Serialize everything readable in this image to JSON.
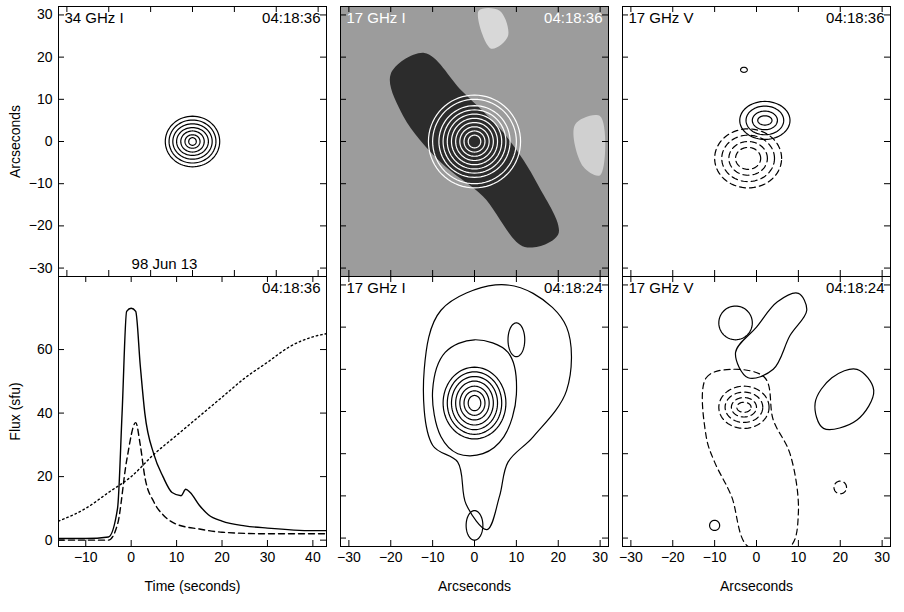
{
  "chart_data": [
    {
      "type": "contour",
      "title": "34 GHz I",
      "timestamp": "04:18:36",
      "annotations": [
        "98 Jun 13"
      ],
      "ylabel": "Arcseconds",
      "xlim": [
        -32,
        32
      ],
      "ylim": [
        -32,
        32
      ],
      "xticks": [
        -30,
        -20,
        -10,
        0,
        10,
        20,
        30
      ],
      "yticks": [
        -30,
        -20,
        -10,
        0,
        10,
        20,
        30
      ],
      "tick_labels": "y",
      "series": [
        {
          "color": "#000000",
          "line_style": "solid",
          "contours": [
            {
              "x": 0,
              "y": 0,
              "rx": 6.5,
              "ry": 6
            },
            {
              "x": 0,
              "y": 0,
              "rx": 5.6,
              "ry": 5.1
            },
            {
              "x": 0,
              "y": 0,
              "rx": 4.7,
              "ry": 4.2
            },
            {
              "x": 0,
              "y": 0,
              "rx": 3.8,
              "ry": 3.3
            },
            {
              "x": 0,
              "y": 0,
              "rx": 2.8,
              "ry": 2.5
            },
            {
              "x": 0,
              "y": 0,
              "rx": 1.8,
              "ry": 1.6
            },
            {
              "x": 0,
              "y": 0,
              "rx": 0.9,
              "ry": 0.9
            }
          ]
        }
      ]
    },
    {
      "type": "contour",
      "title": "17 GHz I",
      "timestamp": "04:18:36",
      "xlim": [
        -32,
        32
      ],
      "ylim": [
        -32,
        32
      ],
      "xticks": [
        -30,
        -20,
        -10,
        0,
        10,
        20,
        30
      ],
      "yticks": [
        -30,
        -20,
        -10,
        0,
        10,
        20,
        30
      ],
      "tick_labels": false,
      "background": {
        "color": "#9c9c9c",
        "patches": [
          {
            "color": "#2c2c2c",
            "points": [
              [
                -20,
                16
              ],
              [
                -12,
                21
              ],
              [
                -3,
                12
              ],
              [
                7,
                2
              ],
              [
                15,
                -10
              ],
              [
                20,
                -22
              ],
              [
                12,
                -25
              ],
              [
                2,
                -13
              ],
              [
                -8,
                -5
              ],
              [
                -17,
                6
              ]
            ]
          },
          {
            "color": "#d8d8d8",
            "points": [
              [
                1,
                31
              ],
              [
                6,
                31
              ],
              [
                8,
                25
              ],
              [
                4,
                22
              ]
            ]
          },
          {
            "color": "#d0d0d0",
            "points": [
              [
                24,
                4
              ],
              [
                30,
                6
              ],
              [
                30,
                -8
              ],
              [
                26,
                -6
              ]
            ]
          }
        ]
      },
      "series": [
        {
          "color": "#ffffff",
          "line_style": "solid",
          "contours": [
            {
              "x": 0,
              "y": 0,
              "rx": 11,
              "ry": 11
            },
            {
              "x": 0,
              "y": 0,
              "rx": 10,
              "ry": 10
            },
            {
              "x": 0,
              "y": 0,
              "rx": 8.5,
              "ry": 8.5
            },
            {
              "x": 0,
              "y": 0,
              "rx": 7.5,
              "ry": 7.5
            },
            {
              "x": 0,
              "y": 0,
              "rx": 6.5,
              "ry": 6.5
            },
            {
              "x": 0,
              "y": 0,
              "rx": 5.5,
              "ry": 5.5
            },
            {
              "x": 0,
              "y": 0,
              "rx": 4.5,
              "ry": 4.5
            },
            {
              "x": 0,
              "y": 0,
              "rx": 3.5,
              "ry": 3.5
            },
            {
              "x": 0,
              "y": 0,
              "rx": 2.5,
              "ry": 2.5
            },
            {
              "x": 0,
              "y": 0,
              "rx": 1.5,
              "ry": 1.5
            }
          ]
        }
      ]
    },
    {
      "type": "contour",
      "title": "17 GHz V",
      "timestamp": "04:18:36",
      "xlim": [
        -32,
        32
      ],
      "ylim": [
        -32,
        32
      ],
      "xticks": [
        -30,
        -20,
        -10,
        0,
        10,
        20,
        30
      ],
      "yticks": [
        -30,
        -20,
        -10,
        0,
        10,
        20,
        30
      ],
      "tick_labels": false,
      "series": [
        {
          "color": "#000000",
          "line_style": "solid",
          "contours": [
            {
              "x": 2,
              "y": 5,
              "rx": 6,
              "ry": 4.5
            },
            {
              "x": 2,
              "y": 5,
              "rx": 4.5,
              "ry": 3.4
            },
            {
              "x": 2,
              "y": 5,
              "rx": 3,
              "ry": 2.2
            },
            {
              "x": 2,
              "y": 5,
              "rx": 1.7,
              "ry": 1.1
            },
            {
              "x": -3,
              "y": 17,
              "rx": 0.8,
              "ry": 0.6
            }
          ]
        },
        {
          "color": "#000000",
          "line_style": "dashed",
          "contours": [
            {
              "x": -2,
              "y": -4,
              "rx": 8,
              "ry": 7
            },
            {
              "x": -2,
              "y": -4,
              "rx": 6.3,
              "ry": 5.5
            },
            {
              "x": -2,
              "y": -4,
              "rx": 4.6,
              "ry": 4
            },
            {
              "x": -2,
              "y": -4,
              "rx": 3,
              "ry": 2.6
            }
          ]
        }
      ]
    },
    {
      "type": "line",
      "title": "04:18:36",
      "xlabel": "Time (seconds)",
      "ylabel": "Flux (sfu)",
      "xlim": [
        -16,
        43
      ],
      "ylim": [
        -2,
        83
      ],
      "xticks": [
        -10,
        0,
        10,
        20,
        30,
        40
      ],
      "yticks": [
        0,
        20,
        40,
        60
      ],
      "tick_labels": true,
      "series": [
        {
          "color": "#000000",
          "line_style": "solid",
          "x": [
            -16,
            -10,
            -5,
            -3,
            -2,
            -1,
            0,
            1,
            2,
            3,
            5,
            7,
            9,
            11,
            12,
            13,
            15,
            17,
            20,
            25,
            30,
            40,
            43
          ],
          "values": [
            0.5,
            0.5,
            1,
            10,
            40,
            72,
            73,
            72,
            55,
            40,
            27,
            20,
            15,
            14,
            16,
            15,
            11,
            8,
            6,
            4.5,
            3.8,
            3,
            3
          ]
        },
        {
          "color": "#000000",
          "line_style": "dashed",
          "x": [
            -16,
            -5,
            -3,
            -1,
            1,
            2,
            3,
            5,
            7,
            10,
            15,
            20,
            30,
            43
          ],
          "values": [
            0,
            0,
            5,
            25,
            37,
            30,
            20,
            12,
            8,
            5,
            3.5,
            2.5,
            2,
            2
          ]
        },
        {
          "color": "#000000",
          "line_style": "dotted",
          "x": [
            -16,
            -10,
            -5,
            0,
            5,
            10,
            15,
            20,
            25,
            30,
            35,
            40,
            43
          ],
          "values": [
            6,
            10,
            15,
            20,
            27,
            33,
            39,
            45,
            51,
            56,
            61,
            64,
            65
          ]
        }
      ]
    },
    {
      "type": "contour",
      "title": "17 GHz I",
      "timestamp": "04:18:24",
      "xlabel": "Arcseconds",
      "xlim": [
        -32,
        32
      ],
      "ylim": [
        -32,
        32
      ],
      "xticks": [
        -30,
        -20,
        -10,
        0,
        10,
        20,
        30
      ],
      "yticks": [
        -30,
        -20,
        -10,
        0,
        10,
        20,
        30
      ],
      "tick_labels": "x",
      "series": [
        {
          "color": "#000000",
          "line_style": "solid",
          "contours": [
            {
              "points": [
                [
                  -10,
                  -8
                ],
                [
                  -12,
                  10
                ],
                [
                  -8,
                  24
                ],
                [
                  5,
                  30
                ],
                [
                  14,
                  28
                ],
                [
                  22,
                  20
                ],
                [
                  22,
                  5
                ],
                [
                  14,
                  -6
                ],
                [
                  8,
                  -12
                ],
                [
                  6,
                  -20
                ],
                [
                  3,
                  -28
                ],
                [
                  -2,
                  -22
                ],
                [
                  -4,
                  -12
                ]
              ]
            },
            {
              "points": [
                [
                  -8,
                  -6
                ],
                [
                  -10,
                  5
                ],
                [
                  -7,
                  14
                ],
                [
                  0,
                  17
                ],
                [
                  8,
                  14
                ],
                [
                  10,
                  4
                ],
                [
                  7,
                  -6
                ],
                [
                  2,
                  -10
                ],
                [
                  -4,
                  -10
                ]
              ]
            },
            {
              "x": 10,
              "y": 17,
              "rx": 2,
              "ry": 4
            },
            {
              "x": 0,
              "y": -27,
              "rx": 2,
              "ry": 3.5
            },
            {
              "x": 0,
              "y": 2,
              "rx": 7.5,
              "ry": 8.5
            },
            {
              "x": 0,
              "y": 2,
              "rx": 6.5,
              "ry": 7.4
            },
            {
              "x": 0,
              "y": 2,
              "rx": 5.5,
              "ry": 6.3
            },
            {
              "x": 0,
              "y": 2,
              "rx": 4.5,
              "ry": 5.2
            },
            {
              "x": 0,
              "y": 2,
              "rx": 3.5,
              "ry": 4
            },
            {
              "x": 0,
              "y": 2,
              "rx": 2.5,
              "ry": 2.9
            },
            {
              "x": 0,
              "y": 2,
              "rx": 1.5,
              "ry": 1.8
            }
          ]
        }
      ]
    },
    {
      "type": "contour",
      "title": "17 GHz V",
      "timestamp": "04:18:24",
      "xlabel": "Arcseconds",
      "xlim": [
        -32,
        32
      ],
      "ylim": [
        -32,
        32
      ],
      "xticks": [
        -30,
        -20,
        -10,
        0,
        10,
        20,
        30
      ],
      "yticks": [
        -30,
        -20,
        -10,
        0,
        10,
        20,
        30
      ],
      "tick_labels": "x",
      "series": [
        {
          "color": "#000000",
          "line_style": "solid",
          "contours": [
            {
              "x": -5,
              "y": 21,
              "rx": 4,
              "ry": 4
            },
            {
              "points": [
                [
                  -5,
                  14
                ],
                [
                  0,
                  20
                ],
                [
                  5,
                  26
                ],
                [
                  10,
                  28
                ],
                [
                  12,
                  24
                ],
                [
                  8,
                  18
                ],
                [
                  4,
                  10
                ],
                [
                  -2,
                  8
                ]
              ]
            },
            {
              "points": [
                [
                  14,
                  2
                ],
                [
                  18,
                  8
                ],
                [
                  24,
                  10
                ],
                [
                  28,
                  5
                ],
                [
                  24,
                  -2
                ],
                [
                  16,
                  -4
                ]
              ]
            },
            {
              "x": -10,
              "y": -27,
              "rx": 1.2,
              "ry": 1.2
            }
          ]
        },
        {
          "color": "#000000",
          "line_style": "dashed",
          "contours": [
            {
              "points": [
                [
                  -12,
                  -6
                ],
                [
                  -12,
                  8
                ],
                [
                  -6,
                  10
                ],
                [
                  2,
                  8
                ],
                [
                  4,
                  -2
                ],
                [
                  8,
                  -10
                ],
                [
                  10,
                  -24
                ],
                [
                  8,
                  -32
                ],
                [
                  -2,
                  -32
                ],
                [
                  -6,
                  -20
                ],
                [
                  -10,
                  -12
                ]
              ]
            },
            {
              "x": -3,
              "y": 1,
              "rx": 6,
              "ry": 5
            },
            {
              "x": -3,
              "y": 1,
              "rx": 4.5,
              "ry": 3.6
            },
            {
              "x": -3,
              "y": 1,
              "rx": 3,
              "ry": 2.3
            },
            {
              "x": -3,
              "y": 1,
              "rx": 1.7,
              "ry": 1.2
            },
            {
              "x": 20,
              "y": -18,
              "rx": 1.5,
              "ry": 1.5
            }
          ]
        }
      ]
    }
  ]
}
